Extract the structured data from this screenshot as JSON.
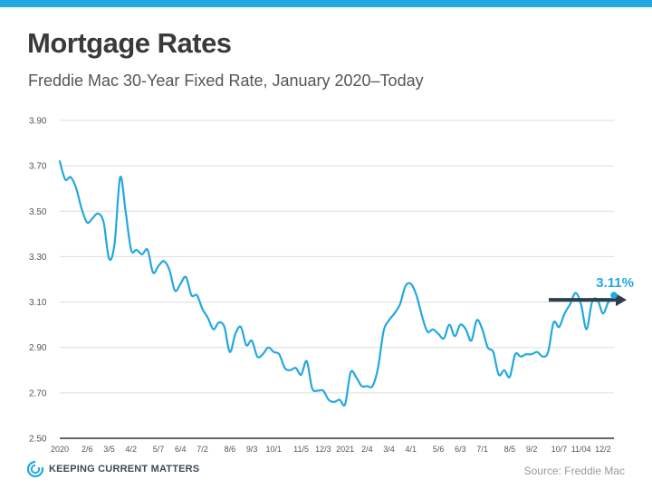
{
  "title": "Mortgage Rates",
  "subtitle": "Freddie Mac 30-Year Fixed Rate, January 2020–Today",
  "source": "Source: Freddie Mac",
  "brand": {
    "name": "Keeping Current Matters",
    "display": "KEEPING CURRENT MATTERS",
    "color": "#22a8e0",
    "icon": "kcm-swirl-icon"
  },
  "colors": {
    "line": "#22a8e0",
    "accent": "#22a8e0",
    "arrow": "#2d3e4e",
    "grid": "#dddddd",
    "axis": "#555555"
  },
  "chart_data": {
    "type": "line",
    "title": "Mortgage Rates",
    "subtitle": "Freddie Mac 30-Year Fixed Rate, January 2020–Today",
    "xlabel": "",
    "ylabel": "",
    "ylim": [
      2.5,
      3.9
    ],
    "y_ticks": [
      "2.50",
      "2.70",
      "2.90",
      "3.10",
      "3.30",
      "3.50",
      "3.70",
      "3.90"
    ],
    "y_tick_values": [
      2.5,
      2.7,
      2.9,
      3.1,
      3.3,
      3.5,
      3.7,
      3.9
    ],
    "x_range": [
      0,
      101
    ],
    "x_ticks": [
      {
        "label": "2020",
        "week": 0
      },
      {
        "label": "2/6",
        "week": 5
      },
      {
        "label": "3/5",
        "week": 9
      },
      {
        "label": "4/2",
        "week": 13
      },
      {
        "label": "5/7",
        "week": 18
      },
      {
        "label": "6/4",
        "week": 22
      },
      {
        "label": "7/2",
        "week": 26
      },
      {
        "label": "8/6",
        "week": 31
      },
      {
        "label": "9/3",
        "week": 35
      },
      {
        "label": "10/1",
        "week": 39
      },
      {
        "label": "11/5",
        "week": 44
      },
      {
        "label": "12/3",
        "week": 48
      },
      {
        "label": "2021",
        "week": 52
      },
      {
        "label": "2/4",
        "week": 56
      },
      {
        "label": "3/4",
        "week": 60
      },
      {
        "label": "4/1",
        "week": 64
      },
      {
        "label": "5/6",
        "week": 69
      },
      {
        "label": "6/3",
        "week": 73
      },
      {
        "label": "7/1",
        "week": 77
      },
      {
        "label": "8/5",
        "week": 82
      },
      {
        "label": "9/2",
        "week": 86
      },
      {
        "label": "10/7",
        "week": 91
      },
      {
        "label": "11/04",
        "week": 95
      },
      {
        "label": "12/2",
        "week": 99
      }
    ],
    "series": [
      {
        "name": "30-Year Fixed Rate",
        "x": [
          0,
          1,
          2,
          3,
          4,
          5,
          6,
          7,
          8,
          9,
          10,
          11,
          12,
          13,
          14,
          15,
          16,
          17,
          18,
          19,
          20,
          21,
          22,
          23,
          24,
          25,
          26,
          27,
          28,
          29,
          30,
          31,
          32,
          33,
          34,
          35,
          36,
          37,
          38,
          39,
          40,
          41,
          42,
          43,
          44,
          45,
          46,
          47,
          48,
          49,
          50,
          51,
          52,
          53,
          54,
          55,
          56,
          57,
          58,
          59,
          60,
          61,
          62,
          63,
          64,
          65,
          66,
          67,
          68,
          69,
          70,
          71,
          72,
          73,
          74,
          75,
          76,
          77,
          78,
          79,
          80,
          81,
          82,
          83,
          84,
          85,
          86,
          87,
          88,
          89,
          90,
          91,
          92,
          93,
          94,
          95,
          96,
          97,
          98,
          99,
          100,
          101
        ],
        "values": [
          3.72,
          3.64,
          3.65,
          3.6,
          3.51,
          3.45,
          3.47,
          3.49,
          3.45,
          3.29,
          3.36,
          3.65,
          3.5,
          3.33,
          3.33,
          3.31,
          3.33,
          3.23,
          3.26,
          3.28,
          3.24,
          3.15,
          3.18,
          3.21,
          3.13,
          3.13,
          3.07,
          3.03,
          2.98,
          3.01,
          2.99,
          2.88,
          2.96,
          2.99,
          2.91,
          2.93,
          2.86,
          2.87,
          2.9,
          2.88,
          2.87,
          2.81,
          2.8,
          2.81,
          2.78,
          2.84,
          2.72,
          2.71,
          2.71,
          2.67,
          2.66,
          2.67,
          2.65,
          2.79,
          2.77,
          2.73,
          2.73,
          2.73,
          2.81,
          2.97,
          3.02,
          3.05,
          3.09,
          3.17,
          3.18,
          3.13,
          3.04,
          2.97,
          2.98,
          2.96,
          2.94,
          3.0,
          2.95,
          3.0,
          2.98,
          2.93,
          3.02,
          2.98,
          2.9,
          2.88,
          2.78,
          2.8,
          2.77,
          2.87,
          2.86,
          2.87,
          2.87,
          2.88,
          2.86,
          2.88,
          3.01,
          2.99,
          3.05,
          3.09,
          3.14,
          3.09,
          2.98,
          3.1,
          3.11,
          3.05,
          3.1,
          3.11
        ]
      }
    ],
    "annotations": [
      {
        "text": "3.11%",
        "week": 101,
        "value": 3.11,
        "type": "callout-arrow"
      }
    ]
  }
}
